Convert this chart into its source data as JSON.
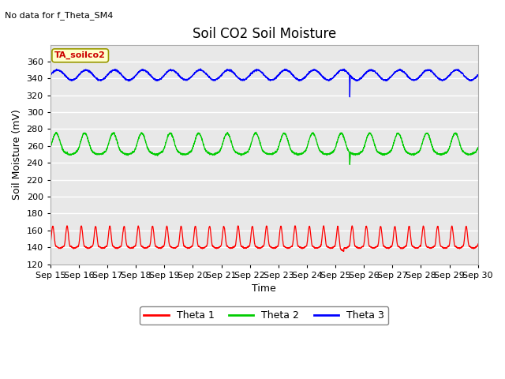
{
  "title": "Soil CO2 Soil Moisture",
  "no_data_text": "No data for f_Theta_SM4",
  "annotation_text": "TA_soilco2",
  "xlabel": "Time",
  "ylabel": "Soil Moisture (mV)",
  "ylim": [
    120,
    380
  ],
  "yticks": [
    120,
    140,
    160,
    180,
    200,
    220,
    240,
    260,
    280,
    300,
    320,
    340,
    360
  ],
  "x_labels": [
    "Sep 15",
    "Sep 16",
    "Sep 17",
    "Sep 18",
    "Sep 19",
    "Sep 20",
    "Sep 21",
    "Sep 22",
    "Sep 23",
    "Sep 24",
    "Sep 25",
    "Sep 26",
    "Sep 27",
    "Sep 28",
    "Sep 29",
    "Sep 30"
  ],
  "bg_color": "#e8e8e8",
  "line_colors": [
    "#ff0000",
    "#00cc00",
    "#0000ff"
  ],
  "legend_labels": [
    "Theta 1",
    "Theta 2",
    "Theta 3"
  ],
  "title_fontsize": 12,
  "label_fontsize": 9,
  "tick_fontsize": 8
}
